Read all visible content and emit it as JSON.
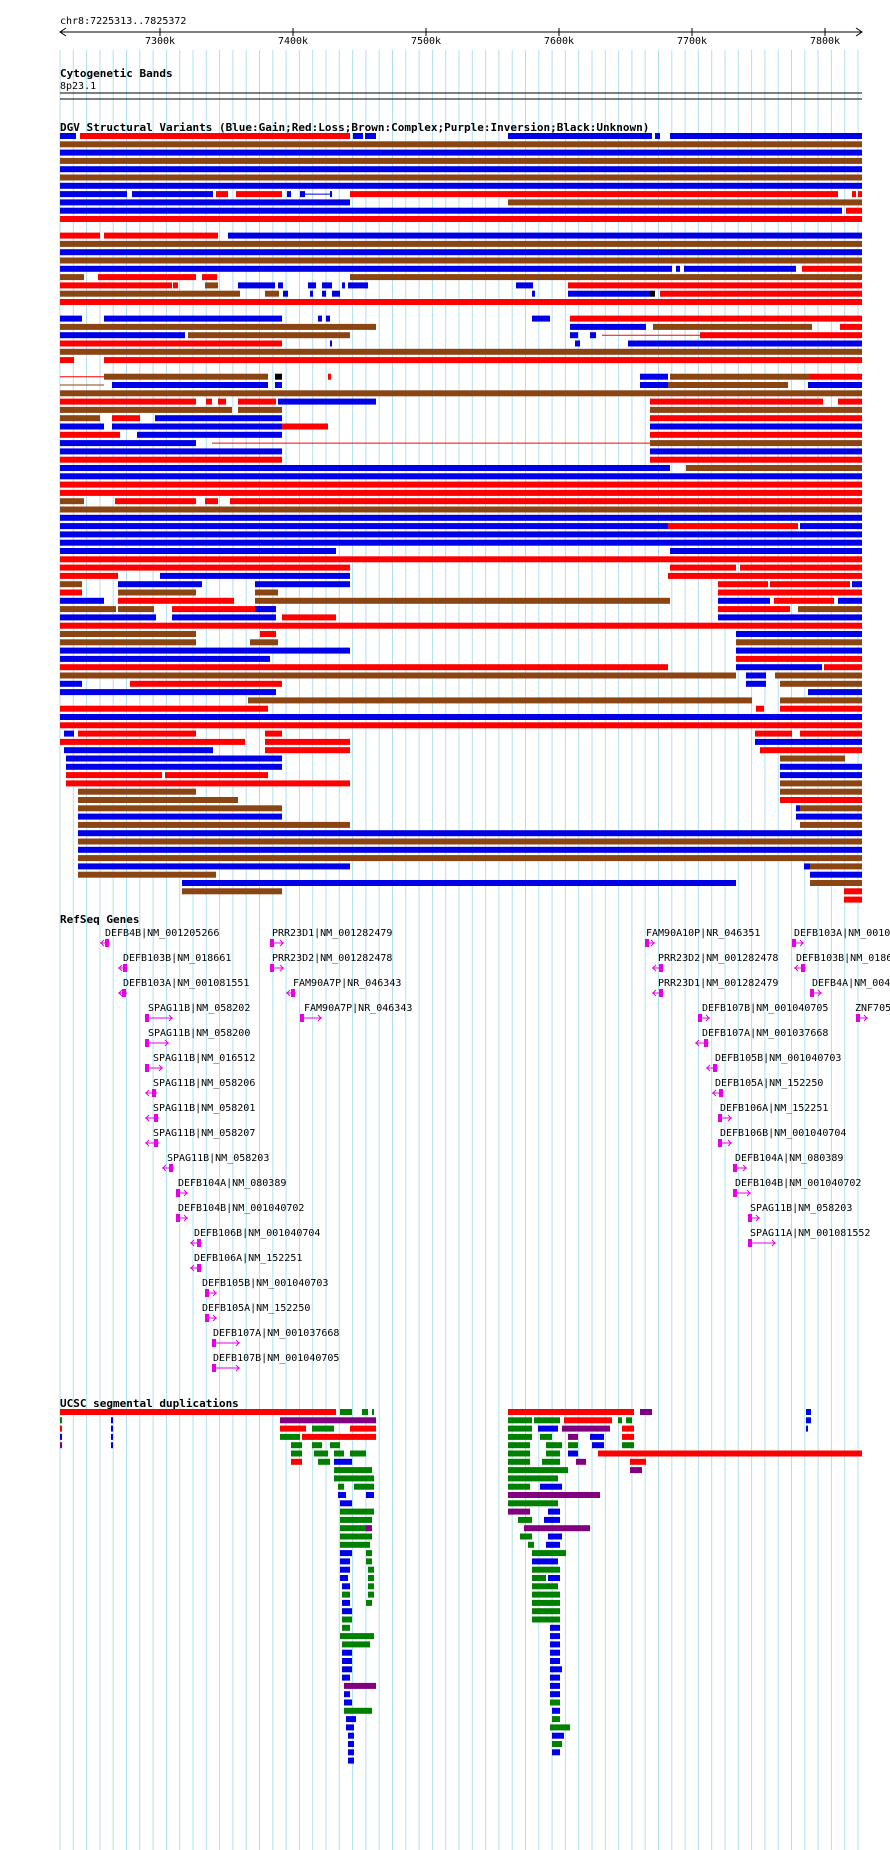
{
  "coordinates": {
    "label": "chr8:7225313..7825372",
    "ticks": [
      "7300k",
      "7400k",
      "7500k",
      "7600k",
      "7700k",
      "7800k"
    ]
  },
  "tracks": {
    "cytoband": {
      "title": "Cytogenetic Bands",
      "band": "8p23.1"
    },
    "dgv": {
      "title": "DGV Structural Variants (Blue:Gain;Red:Loss;Brown:Complex;Purple:Inversion;Black:Unknown)"
    },
    "refseq": {
      "title": "RefSeq Genes"
    },
    "segdup": {
      "title": "UCSC segmental duplications"
    }
  },
  "colors": {
    "gain": "#0000e6",
    "loss": "#ff0000",
    "complex": "#8b4513",
    "inversion": "#800080",
    "unknown": "#000000",
    "gene": "#e600e6",
    "segdup_green": "#008000",
    "grid": "#b0e0f0"
  },
  "genes": [
    "DEFB4B|NM_001205266",
    "DEFB103B|NM_018661",
    "DEFB103A|NM_001081551",
    "SPAG11B|NM_058202",
    "SPAG11B|NM_058200",
    "SPAG11B|NM_016512",
    "SPAG11B|NM_058206",
    "SPAG11B|NM_058201",
    "SPAG11B|NM_058207",
    "SPAG11B|NM_058203",
    "DEFB104A|NM_080389",
    "DEFB104B|NM_001040702",
    "DEFB106B|NM_001040704",
    "DEFB106A|NM_152251",
    "DEFB105B|NM_001040703",
    "DEFB105A|NM_152250",
    "DEFB107A|NM_001037668",
    "DEFB107B|NM_001040705",
    "PRR23D1|NM_001282479",
    "PRR23D2|NM_001282478",
    "FAM90A7P|NR_046343",
    "FAM90A7P|NR_046343",
    "FAM90A10P|NR_046351",
    "PRR23D2|NM_001282478",
    "PRR23D1|NM_001282479",
    "DEFB107B|NM_001040705",
    "DEFB107A|NM_001037668",
    "DEFB105B|NM_001040703",
    "DEFB105A|NM_152250",
    "DEFB106A|NM_152251",
    "DEFB106B|NM_001040704",
    "DEFB104A|NM_080389",
    "DEFB104B|NM_001040702",
    "SPAG11B|NM_058203",
    "SPAG11A|NM_001081552",
    "DEFB103A|NM_0010",
    "DEFB103B|NM_0186",
    "DEFB4A|NM_004",
    "ZNF705"
  ]
}
